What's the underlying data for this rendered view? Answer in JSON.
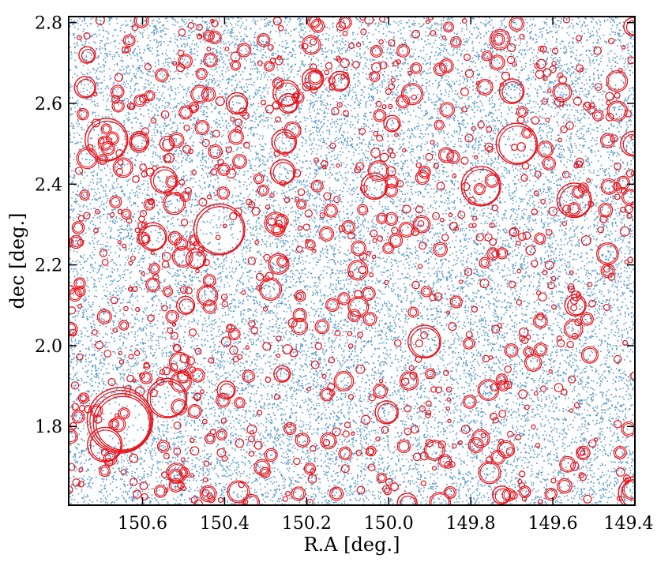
{
  "chart_data": {
    "type": "scatter",
    "xlabel": "R.A [deg.]",
    "ylabel": "dec [deg.]",
    "xlim": [
      150.78,
      149.4
    ],
    "ylim": [
      1.605,
      2.815
    ],
    "x_inverted": true,
    "grid": false,
    "x_ticks": [
      150.6,
      150.4,
      150.2,
      150.0,
      149.8,
      149.6,
      149.4
    ],
    "x_tick_labels": [
      "150.6",
      "150.4",
      "150.2",
      "150.0",
      "149.8",
      "149.6",
      "149.4"
    ],
    "y_ticks": [
      1.8,
      2.0,
      2.2,
      2.4,
      2.6,
      2.8
    ],
    "y_tick_labels": [
      "1.8",
      "2.0",
      "2.2",
      "2.4",
      "2.6",
      "2.8"
    ],
    "colors": {
      "points": "#3b86c2",
      "circles": "#e8131a",
      "axes": "#000000",
      "background": "#ffffff"
    },
    "series": [
      {
        "kind": "scatter",
        "color": "#3b86c2",
        "point_count_estimate": 22000,
        "ra_range": [
          149.4,
          150.78
        ],
        "dec_range": [
          1.605,
          2.815
        ]
      },
      {
        "kind": "circles",
        "color": "#e8131a",
        "ring": "double",
        "circles": [
          {
            "ra": 150.655,
            "dec": 1.815,
            "r": 0.08
          },
          {
            "ra": 150.65,
            "dec": 1.81,
            "r": 0.07
          },
          {
            "ra": 150.692,
            "dec": 1.755,
            "r": 0.042
          },
          {
            "ra": 150.54,
            "dec": 1.87,
            "r": 0.048
          },
          {
            "ra": 150.413,
            "dec": 2.288,
            "r": 0.062
          },
          {
            "ra": 150.688,
            "dec": 2.51,
            "r": 0.052
          },
          {
            "ra": 150.575,
            "dec": 2.27,
            "r": 0.034
          },
          {
            "ra": 150.548,
            "dec": 2.41,
            "r": 0.032
          },
          {
            "ra": 150.47,
            "dec": 2.215,
            "r": 0.024
          },
          {
            "ra": 150.495,
            "dec": 2.1,
            "r": 0.022
          },
          {
            "ra": 150.74,
            "dec": 2.64,
            "r": 0.026
          },
          {
            "ra": 150.735,
            "dec": 2.72,
            "r": 0.02
          },
          {
            "ra": 150.37,
            "dec": 2.6,
            "r": 0.026
          },
          {
            "ra": 150.25,
            "dec": 2.625,
            "r": 0.032
          },
          {
            "ra": 150.245,
            "dec": 2.6,
            "r": 0.024
          },
          {
            "ra": 150.255,
            "dec": 2.505,
            "r": 0.03
          },
          {
            "ra": 150.258,
            "dec": 2.43,
            "r": 0.03
          },
          {
            "ra": 150.185,
            "dec": 2.66,
            "r": 0.026
          },
          {
            "ra": 150.12,
            "dec": 2.655,
            "r": 0.024
          },
          {
            "ra": 150.035,
            "dec": 2.395,
            "r": 0.032
          },
          {
            "ra": 149.992,
            "dec": 2.55,
            "r": 0.02
          },
          {
            "ra": 149.913,
            "dec": 2.01,
            "r": 0.04
          },
          {
            "ra": 150.005,
            "dec": 1.835,
            "r": 0.028
          },
          {
            "ra": 149.775,
            "dec": 2.395,
            "r": 0.048
          },
          {
            "ra": 149.688,
            "dec": 2.5,
            "r": 0.05
          },
          {
            "ra": 149.7,
            "dec": 2.63,
            "r": 0.03
          },
          {
            "ra": 149.548,
            "dec": 2.36,
            "r": 0.042
          },
          {
            "ra": 149.545,
            "dec": 2.1,
            "r": 0.026
          },
          {
            "ra": 149.4,
            "dec": 1.635,
            "r": 0.04
          },
          {
            "ra": 149.405,
            "dec": 2.5,
            "r": 0.03
          },
          {
            "ra": 149.405,
            "dec": 2.79,
            "r": 0.022
          },
          {
            "ra": 149.725,
            "dec": 1.63,
            "r": 0.022
          },
          {
            "ra": 149.955,
            "dec": 1.61,
            "r": 0.024
          },
          {
            "ra": 150.396,
            "dec": 1.89,
            "r": 0.022
          },
          {
            "ra": 150.26,
            "dec": 1.93,
            "r": 0.02
          },
          {
            "ra": 150.54,
            "dec": 2.5,
            "r": 0.018
          }
        ]
      }
    ]
  }
}
